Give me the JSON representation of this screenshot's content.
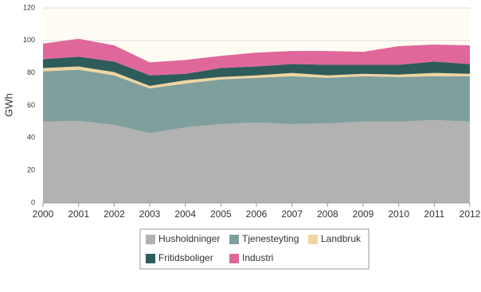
{
  "chart_data": {
    "type": "stacked-area",
    "y_label": "GWh",
    "x": [
      2000,
      2001,
      2002,
      2003,
      2004,
      2005,
      2006,
      2007,
      2008,
      2009,
      2010,
      2011,
      2012
    ],
    "xlim": [
      2000,
      2012
    ],
    "xticks": [
      2000,
      2001,
      2002,
      2003,
      2004,
      2005,
      2006,
      2007,
      2008,
      2009,
      2010,
      2011,
      2012
    ],
    "ylim": [
      0,
      120
    ],
    "yticks": [
      0,
      20,
      40,
      60,
      80,
      100,
      120
    ],
    "grid": true,
    "series": [
      {
        "name": "Husholdninger",
        "color": "#b2b2b2",
        "values": [
          50,
          50.5,
          48,
          43,
          46.5,
          48.5,
          49.5,
          48.5,
          49,
          50,
          50,
          51,
          50
        ]
      },
      {
        "name": "Tjenesteyting",
        "color": "#7f9f9d",
        "values": [
          31,
          31.5,
          30.5,
          27.5,
          27,
          27.5,
          27.5,
          29.5,
          28,
          28,
          27.5,
          27,
          28
        ]
      },
      {
        "name": "Landbruk",
        "color": "#f0d5a0",
        "values": [
          2,
          2,
          2,
          1.5,
          2,
          1.5,
          1.5,
          2,
          1.5,
          1.5,
          1.5,
          2,
          1.5
        ]
      },
      {
        "name": "Fritidsboliger",
        "color": "#2e5c5a",
        "values": [
          5.5,
          6,
          6.5,
          6.5,
          4,
          5.5,
          5.5,
          5.5,
          6.5,
          5.5,
          6,
          7,
          6
        ]
      },
      {
        "name": "Industri",
        "color": "#e0679a",
        "values": [
          9.5,
          11,
          10,
          8,
          8.5,
          7.5,
          8.5,
          8,
          8.5,
          8,
          11.5,
          10.5,
          11.5
        ]
      }
    ]
  }
}
